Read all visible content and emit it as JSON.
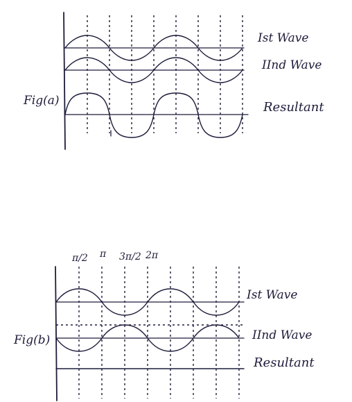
{
  "fig_a": {
    "label": "Fig(a)",
    "wave1_label": "Ist Wave",
    "wave2_label": "IInd Wave",
    "resultant_label": "Resultant",
    "tick_mark": "1"
  },
  "fig_b": {
    "label": "Fig(b)",
    "phase_labels": [
      "π/2",
      "π",
      "3π/2",
      "2π"
    ],
    "wave1_label": "Ist Wave",
    "wave2_label": "IInd Wave",
    "resultant_label": "Resultant"
  }
}
